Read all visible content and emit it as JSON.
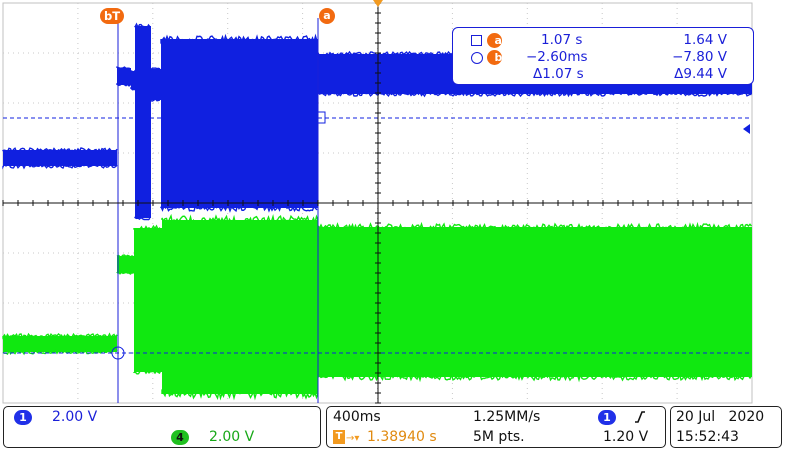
{
  "colors": {
    "channel1": "#1020e0",
    "channel4": "#10e810",
    "marker": "#f26a10",
    "readout_blue": "#1a1fd8",
    "grid": "#c8c8c8"
  },
  "markers": {
    "a": "a",
    "b": "b",
    "trigger": "T"
  },
  "cursor_readout": {
    "row_a": {
      "time": "1.07 s",
      "value": "1.64 V"
    },
    "row_b": {
      "time": "−2.60ms",
      "value": "−7.80 V"
    },
    "row_delta": {
      "time": "Δ1.07 s",
      "value": "Δ9.44 V"
    }
  },
  "status": {
    "ch1": {
      "number": "1",
      "scale": "2.00 V"
    },
    "ch4": {
      "number": "4",
      "scale": "2.00 V"
    },
    "timebase": "400ms",
    "sample_rate": "1.25MM/s",
    "trigger_position": "1.38940 s",
    "record_length": "5M pts.",
    "trigger_source": "1",
    "trigger_level": "1.20 V",
    "date": "20 Jul   2020",
    "time": "15:52:43"
  }
}
